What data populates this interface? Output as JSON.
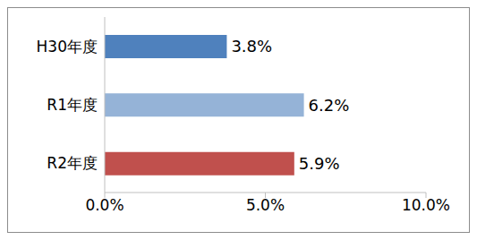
{
  "chart_data": {
    "type": "bar",
    "orientation": "horizontal",
    "categories": [
      "H30年度",
      "R1年度",
      "R2年度"
    ],
    "values": [
      3.8,
      6.2,
      5.9
    ],
    "value_labels": [
      "3.8%",
      "6.2%",
      "5.9%"
    ],
    "colors": [
      "#4f81bd",
      "#95b3d7",
      "#c0504d"
    ],
    "xlim": [
      0,
      10
    ],
    "xticks": [
      {
        "value": 0,
        "label": "0.0%"
      },
      {
        "value": 5,
        "label": "5.0%"
      },
      {
        "value": 10,
        "label": "10.0%"
      }
    ],
    "grid": false,
    "data_labels": true
  }
}
